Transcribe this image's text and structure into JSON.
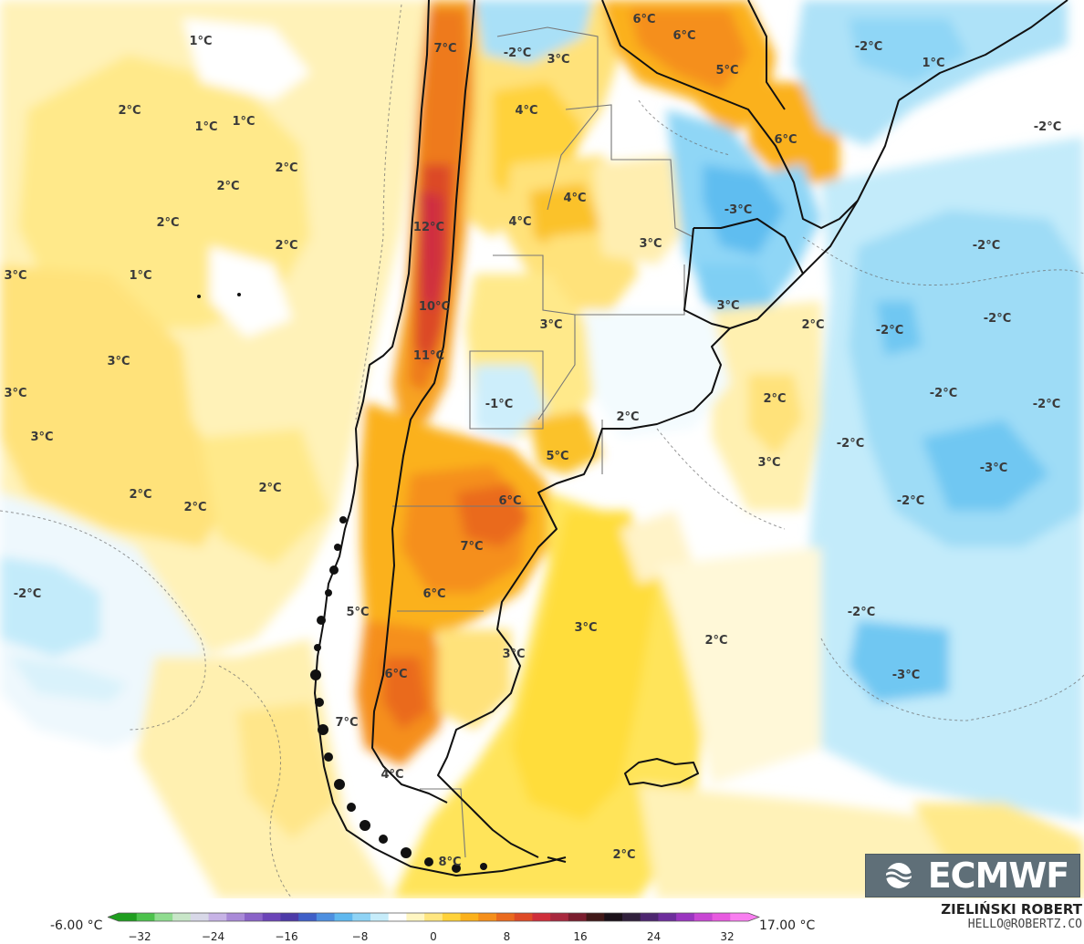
{
  "map": {
    "labels": [
      {
        "text": "7°C"
      },
      {
        "text": "-2°C"
      },
      {
        "text": "3°C"
      },
      {
        "text": "6°C"
      },
      {
        "text": "6°C"
      },
      {
        "text": "5°C"
      },
      {
        "text": "-2°C"
      },
      {
        "text": "1°C"
      },
      {
        "text": "1°C"
      },
      {
        "text": "2°C"
      },
      {
        "text": "1°C"
      },
      {
        "text": "1°C"
      },
      {
        "text": "4°C"
      },
      {
        "text": "6°C"
      },
      {
        "text": "-2°C"
      },
      {
        "text": "2°C"
      },
      {
        "text": "2°C"
      },
      {
        "text": "4°C"
      },
      {
        "text": "4°C"
      },
      {
        "text": "-3°C"
      },
      {
        "text": "12°C"
      },
      {
        "text": "2°C"
      },
      {
        "text": "2°C"
      },
      {
        "text": "3°C"
      },
      {
        "text": "-2°C"
      },
      {
        "text": "3°C"
      },
      {
        "text": "1°C"
      },
      {
        "text": "10°C"
      },
      {
        "text": "3°C"
      },
      {
        "text": "3°C"
      },
      {
        "text": "2°C"
      },
      {
        "text": "-2°C"
      },
      {
        "text": "-2°C"
      },
      {
        "text": "11°C"
      },
      {
        "text": "3°C"
      },
      {
        "text": "3°C"
      },
      {
        "text": "-1°C"
      },
      {
        "text": "2°C"
      },
      {
        "text": "2°C"
      },
      {
        "text": "-2°C"
      },
      {
        "text": "-2°C"
      },
      {
        "text": "3°C"
      },
      {
        "text": "-2°C"
      },
      {
        "text": "5°C"
      },
      {
        "text": "3°C"
      },
      {
        "text": "-3°C"
      },
      {
        "text": "2°C"
      },
      {
        "text": "2°C"
      },
      {
        "text": "2°C"
      },
      {
        "text": "6°C"
      },
      {
        "text": "-2°C"
      },
      {
        "text": "7°C"
      },
      {
        "text": "-2°C"
      },
      {
        "text": "6°C"
      },
      {
        "text": "5°C"
      },
      {
        "text": "-2°C"
      },
      {
        "text": "3°C"
      },
      {
        "text": "2°C"
      },
      {
        "text": "3°C"
      },
      {
        "text": "6°C"
      },
      {
        "text": "-3°C"
      },
      {
        "text": "7°C"
      },
      {
        "text": "4°C"
      },
      {
        "text": "8°C"
      },
      {
        "text": "2°C"
      }
    ]
  },
  "logo": {
    "text": "ECMWF"
  },
  "legend": {
    "min_label": "-6.00 °C",
    "max_label": "17.00 °C",
    "ticks": [
      "−32",
      "−24",
      "−16",
      "−8",
      "0",
      "8",
      "16",
      "24",
      "32"
    ],
    "colors": [
      "#1f9e1f",
      "#4cc24c",
      "#8fdc8f",
      "#c8e6c8",
      "#d8d8e8",
      "#c7b3e6",
      "#a98ad8",
      "#8a63c8",
      "#6b44b8",
      "#4d3aa8",
      "#3f5fc8",
      "#4d8fe0",
      "#5fb8ef",
      "#8fd3f5",
      "#c6ecfa",
      "#ffffff",
      "#fff6c2",
      "#ffe680",
      "#ffd23a",
      "#fbb11c",
      "#f58f1a",
      "#ea6a1e",
      "#de4a26",
      "#cf2e3a",
      "#a8283e",
      "#7a1d2e",
      "#401818",
      "#1a1018",
      "#30203c",
      "#4d2670",
      "#6d2d9c",
      "#9a35c0",
      "#c846d4",
      "#e85ae0",
      "#f97ef0"
    ]
  },
  "credit": {
    "name": "ZIELIŃSKI ROBERT",
    "email": "HELLO@ROBERTZ.CO"
  }
}
